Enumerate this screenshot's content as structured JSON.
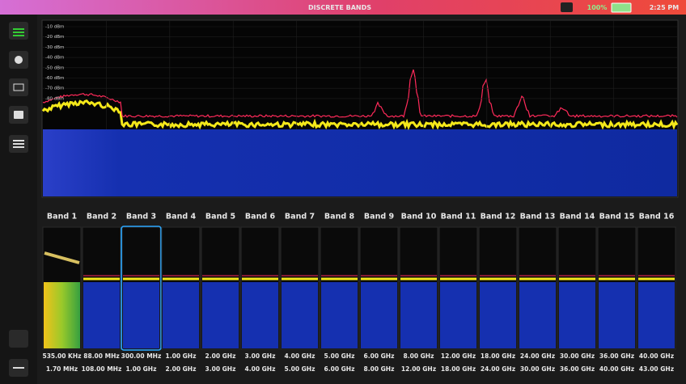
{
  "header": {
    "title": "DISCRETE BANDS",
    "battery": "100%",
    "time": "2:25 PM"
  },
  "spectrum": {
    "axis_labels": [
      "-10 dBm",
      "-20 dBm",
      "-30 dBm",
      "-40 dBm",
      "-50 dBm",
      "-60 dBm",
      "-70 dBm",
      "-80 dBm"
    ]
  },
  "bands": [
    {
      "name": "Band 1",
      "start": "535.00 KHz",
      "stop": "1.70 MHz"
    },
    {
      "name": "Band 2",
      "start": "88.00 MHz",
      "stop": "108.00 MHz"
    },
    {
      "name": "Band 3",
      "start": "300.00 MHz",
      "stop": "1.00 GHz"
    },
    {
      "name": "Band 4",
      "start": "1.00 GHz",
      "stop": "2.00 GHz"
    },
    {
      "name": "Band 5",
      "start": "2.00 GHz",
      "stop": "3.00 GHz"
    },
    {
      "name": "Band 6",
      "start": "3.00 GHz",
      "stop": "4.00 GHz"
    },
    {
      "name": "Band 7",
      "start": "4.00 GHz",
      "stop": "5.00 GHz"
    },
    {
      "name": "Band 8",
      "start": "5.00 GHz",
      "stop": "6.00 GHz"
    },
    {
      "name": "Band 9",
      "start": "6.00 GHz",
      "stop": "8.00 GHz"
    },
    {
      "name": "Band 10",
      "start": "8.00 GHz",
      "stop": "12.00 GHz"
    },
    {
      "name": "Band 11",
      "start": "12.00 GHz",
      "stop": "18.00 GHz"
    },
    {
      "name": "Band 12",
      "start": "18.00 GHz",
      "stop": "24.00 GHz"
    },
    {
      "name": "Band 13",
      "start": "24.00 GHz",
      "stop": "30.00 GHz"
    },
    {
      "name": "Band 14",
      "start": "30.00 GHz",
      "stop": "36.00 GHz"
    },
    {
      "name": "Band 15",
      "start": "36.00 GHz",
      "stop": "40.00 GHz"
    },
    {
      "name": "Band 16",
      "start": "40.00 GHz",
      "stop": "43.00 GHz"
    }
  ]
}
